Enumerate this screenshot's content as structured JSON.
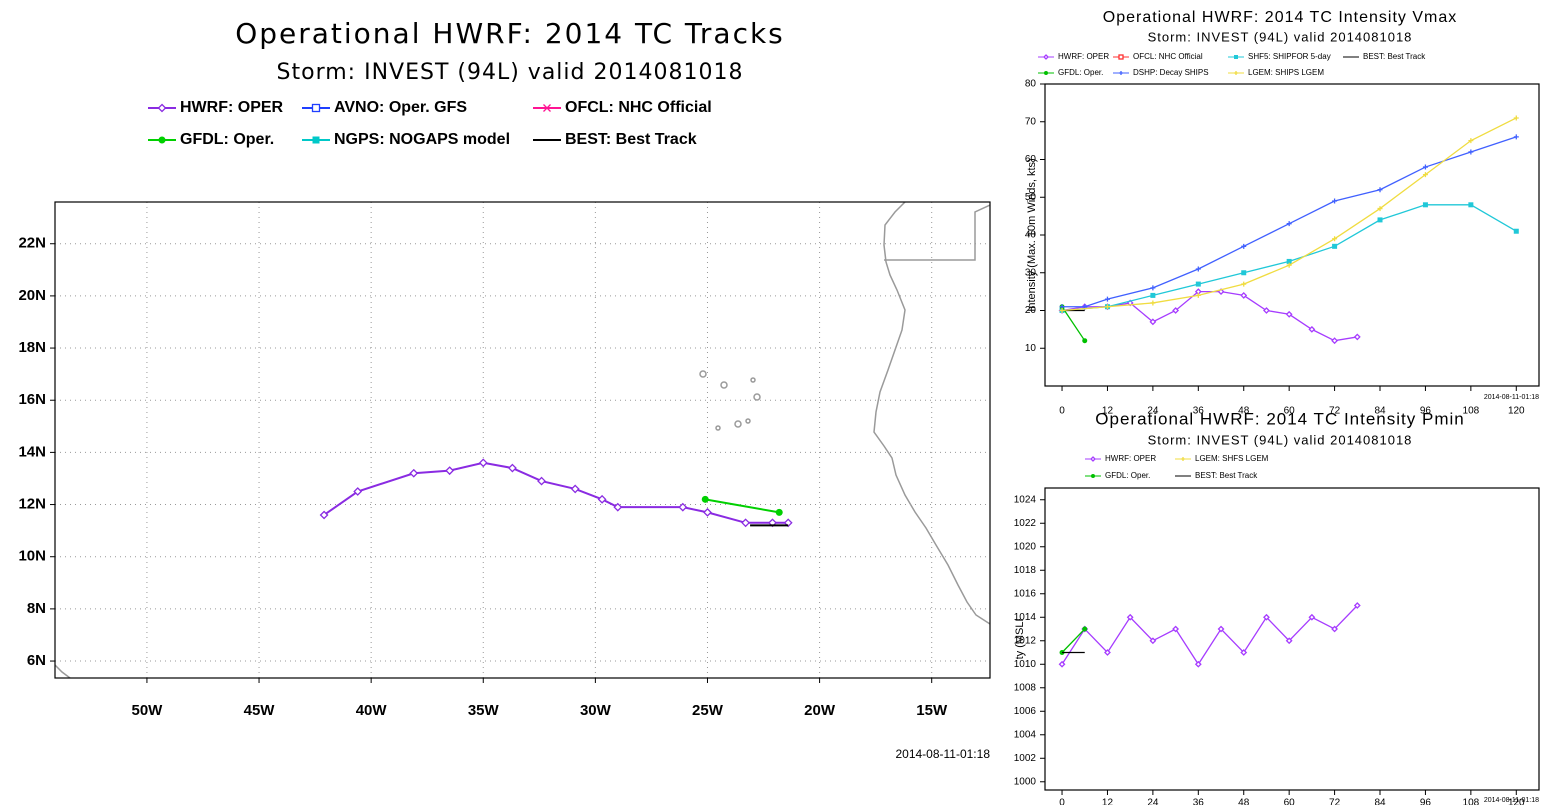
{
  "chart_data": [
    {
      "type": "map",
      "title": "Operational HWRF: 2014 TC Tracks",
      "subtitle": "Storm: INVEST (94L) valid 2014081018",
      "timestamp": "2014-08-11-01:18",
      "xlim": [
        -54.1,
        -12.4
      ],
      "ylim": [
        5.35,
        23.6
      ],
      "xticks": [
        {
          "value": -50,
          "label": "50W"
        },
        {
          "value": -45,
          "label": "45W"
        },
        {
          "value": -40,
          "label": "40W"
        },
        {
          "value": -35,
          "label": "35W"
        },
        {
          "value": -30,
          "label": "30W"
        },
        {
          "value": -25,
          "label": "25W"
        },
        {
          "value": -20,
          "label": "20W"
        },
        {
          "value": -15,
          "label": "15W"
        }
      ],
      "yticks": [
        {
          "value": 6,
          "label": "6N"
        },
        {
          "value": 8,
          "label": "8N"
        },
        {
          "value": 10,
          "label": "10N"
        },
        {
          "value": 12,
          "label": "12N"
        },
        {
          "value": 14,
          "label": "14N"
        },
        {
          "value": 16,
          "label": "16N"
        },
        {
          "value": 18,
          "label": "18N"
        },
        {
          "value": 20,
          "label": "20N"
        },
        {
          "value": 22,
          "label": "22N"
        }
      ],
      "grid": true,
      "series": [
        {
          "name": "HWRF: OPER",
          "color": "#8a2be2",
          "marker": "diamond",
          "x": [
            -21.4,
            -22.1,
            -23.3,
            -25.0,
            -26.1,
            -29.0,
            -29.7,
            -30.9,
            -32.4,
            -33.7,
            -35.0,
            -36.5,
            -38.1,
            -40.6,
            -42.1
          ],
          "values": [
            11.3,
            11.3,
            11.3,
            11.7,
            11.9,
            11.9,
            12.2,
            12.6,
            12.9,
            13.4,
            13.6,
            13.3,
            13.2,
            12.5,
            11.6
          ]
        },
        {
          "name": "AVNO: Oper. GFS",
          "color": "#1f3fff",
          "marker": "square-open",
          "x": [],
          "values": []
        },
        {
          "name": "OFCL: NHC Official",
          "color": "#ff1493",
          "marker": "x",
          "x": [],
          "values": []
        },
        {
          "name": "GFDL: Oper.",
          "color": "#00d000",
          "marker": "circle",
          "x": [
            -21.8,
            -25.1
          ],
          "values": [
            11.7,
            12.2
          ]
        },
        {
          "name": "NGPS: NOGAPS model",
          "color": "#00c8c8",
          "marker": "square",
          "x": [],
          "values": []
        },
        {
          "name": "BEST: Best Track",
          "color": "#000000",
          "marker": "none",
          "x": [
            -21.4,
            -23.1
          ],
          "values": [
            11.2,
            11.2
          ]
        }
      ]
    },
    {
      "type": "line",
      "title": "Operational HWRF: 2014 TC Intensity Vmax",
      "subtitle": "Storm: INVEST (94L) valid 2014081018",
      "ylabel": "Intensity (Max. 10m Winds, kts)",
      "timestamp": "2014-08-11-01:18",
      "xlim": [
        -4.5,
        126
      ],
      "ylim": [
        0,
        80
      ],
      "xticks": [
        0,
        12,
        24,
        36,
        48,
        60,
        72,
        84,
        96,
        108,
        120
      ],
      "yticks": [
        10,
        20,
        30,
        40,
        50,
        60,
        70,
        80
      ],
      "grid": false,
      "series": [
        {
          "name": "HWRF: OPER",
          "color": "#a63cff",
          "marker": "diamond",
          "x": [
            0,
            6,
            12,
            18,
            24,
            30,
            36,
            42,
            48,
            54,
            60,
            66,
            72,
            78
          ],
          "values": [
            20,
            21,
            21,
            22,
            17,
            20,
            25,
            25,
            24,
            20,
            19,
            15,
            12,
            13
          ]
        },
        {
          "name": "OFCL: NHC Official",
          "color": "#ff3030",
          "marker": "square-open",
          "x": [],
          "values": []
        },
        {
          "name": "SHF5: SHIPFOR 5-day",
          "color": "#20c8d8",
          "marker": "square",
          "x": [
            0,
            12,
            24,
            36,
            48,
            60,
            72,
            84,
            96,
            108,
            120
          ],
          "values": [
            20,
            21,
            24,
            27,
            30,
            33,
            37,
            44,
            48,
            48,
            41
          ]
        },
        {
          "name": "BEST: Best Track",
          "color": "#000000",
          "marker": "none",
          "x": [
            0,
            6
          ],
          "values": [
            20,
            20
          ]
        },
        {
          "name": "GFDL: Oper.",
          "color": "#00c000",
          "marker": "circle",
          "x": [
            0,
            6
          ],
          "values": [
            21,
            12
          ]
        },
        {
          "name": "DSHP: Decay SHIPS",
          "color": "#4060ff",
          "marker": "plus",
          "x": [
            0,
            6,
            12,
            24,
            36,
            48,
            60,
            72,
            84,
            96,
            108,
            120
          ],
          "values": [
            21,
            21,
            23,
            26,
            31,
            37,
            43,
            49,
            52,
            58,
            62,
            66
          ]
        },
        {
          "name": "LGEM: SHIPS LGEM",
          "color": "#f0dc40",
          "marker": "plus",
          "x": [
            0,
            12,
            24,
            36,
            48,
            60,
            72,
            84,
            96,
            108,
            120
          ],
          "values": [
            20,
            21,
            22,
            24,
            27,
            32,
            39,
            47,
            56,
            65,
            71
          ]
        }
      ]
    },
    {
      "type": "line",
      "title": "Operational HWRF: 2014 TC Intensity Pmin",
      "subtitle": "Storm: INVEST (94L) valid 2014081018",
      "ylabel": "Intensity (MSLP, hPa)",
      "timestamp": "2014-08-11-01:18",
      "xlim": [
        -4.5,
        126
      ],
      "ylim": [
        999.3,
        1025
      ],
      "xticks": [
        0,
        12,
        24,
        36,
        48,
        60,
        72,
        84,
        96,
        108,
        120
      ],
      "yticks": [
        1000,
        1002,
        1004,
        1006,
        1008,
        1010,
        1012,
        1014,
        1016,
        1018,
        1020,
        1022,
        1024
      ],
      "grid": false,
      "series": [
        {
          "name": "HWRF: OPER",
          "color": "#a63cff",
          "marker": "diamond",
          "x": [
            0,
            6,
            12,
            18,
            24,
            30,
            36,
            42,
            48,
            54,
            60,
            66,
            72,
            78
          ],
          "values": [
            1010,
            1013,
            1011,
            1014,
            1012,
            1013,
            1010,
            1013,
            1011,
            1014,
            1012,
            1014,
            1013,
            1015
          ]
        },
        {
          "name": "LGEM: SHFS LGEM",
          "color": "#f0dc40",
          "marker": "plus",
          "x": [],
          "values": []
        },
        {
          "name": "GFDL: Oper.",
          "color": "#00c000",
          "marker": "circle",
          "x": [
            0,
            6
          ],
          "values": [
            1011,
            1013
          ]
        },
        {
          "name": "BEST: Best Track",
          "color": "#000000",
          "marker": "none",
          "x": [
            0,
            6
          ],
          "values": [
            1011,
            1011
          ]
        }
      ]
    }
  ]
}
